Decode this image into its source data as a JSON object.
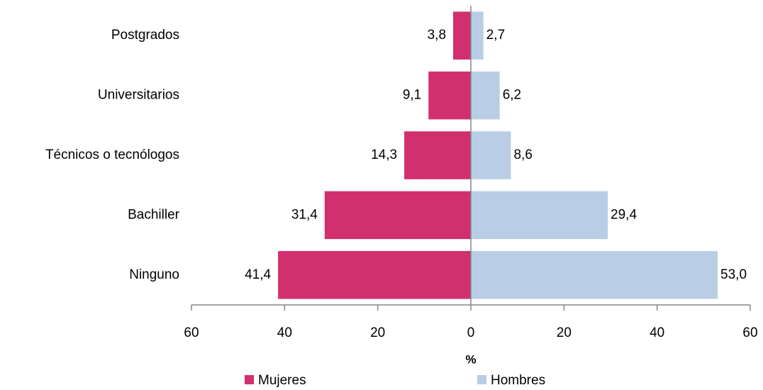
{
  "chart_data": {
    "type": "bar",
    "orientation": "horizontal",
    "stacked": true,
    "x_label": "%",
    "categories": [
      "Postgrados",
      "Universitarios",
      "Técnicos o tecnólogos",
      "Bachiller",
      "Ninguno"
    ],
    "series": [
      {
        "name": "Mujeres",
        "color": "#d12f6d",
        "values": [
          -3.8,
          -9.1,
          -14.3,
          -31.4,
          -41.4
        ],
        "value_labels": [
          "3,8",
          "9,1",
          "14,3",
          "31,4",
          "41,4"
        ]
      },
      {
        "name": "Hombres",
        "color": "#b9cde5",
        "values": [
          2.7,
          6.2,
          8.6,
          29.4,
          53.0
        ],
        "value_labels": [
          "2,7",
          "6,2",
          "8,6",
          "29,4",
          "53,0"
        ]
      }
    ],
    "xlim": [
      -60,
      60
    ],
    "xticks": [
      {
        "value": -60,
        "label": "60"
      },
      {
        "value": -40,
        "label": "40"
      },
      {
        "value": -20,
        "label": "20"
      },
      0,
      20,
      40,
      60
    ],
    "legend": "bottom"
  }
}
